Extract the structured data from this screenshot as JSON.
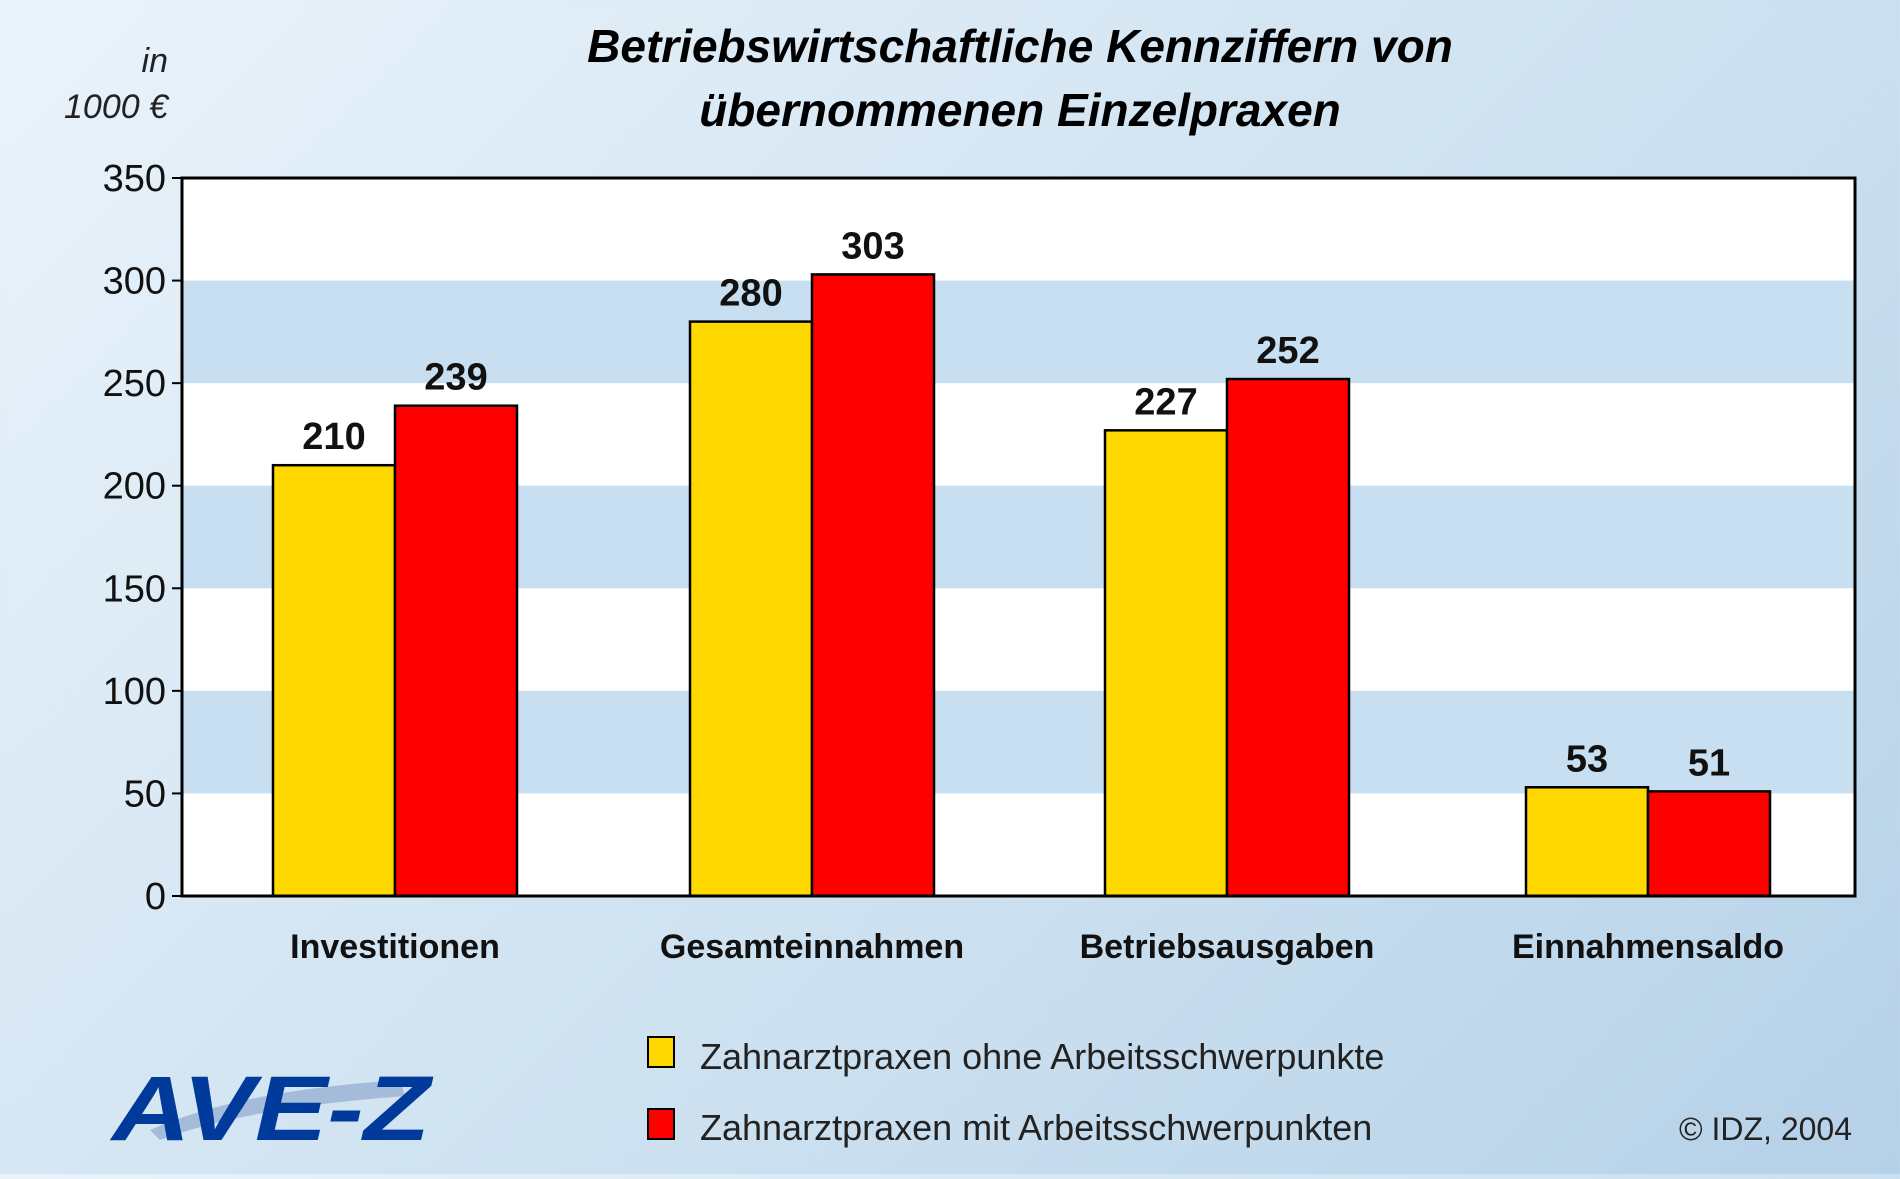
{
  "chart_data": {
    "type": "bar",
    "title_line1": "Betriebswirtschaftliche Kennziffern von",
    "title_line2": "übernommenen Einzelpraxen",
    "unit_line1": "in",
    "unit_line2": "1000 €",
    "categories": [
      "Investitionen",
      "Gesamteinnahmen",
      "Betriebsausgaben",
      "Einnahmensaldo"
    ],
    "series": [
      {
        "name": "Zahnarztpraxen ohne Arbeitsschwerpunkte",
        "values": [
          210,
          280,
          227,
          53
        ],
        "color": "#ffd800"
      },
      {
        "name": "Zahnarztpraxen mit Arbeitsschwerpunkten",
        "values": [
          239,
          303,
          252,
          51
        ],
        "color": "#ff0000"
      }
    ],
    "ylim": [
      0,
      350
    ],
    "yticks": [
      0,
      50,
      100,
      150,
      200,
      250,
      300,
      350
    ],
    "legend_position": "bottom-center",
    "grid": "alternating horizontal bands"
  },
  "logo_text": "AVE-Z",
  "logo_color": "#003a9b",
  "copyright": "© IDZ, 2004",
  "band_color": "#c7dff0",
  "plot_bg": "#ffffff"
}
